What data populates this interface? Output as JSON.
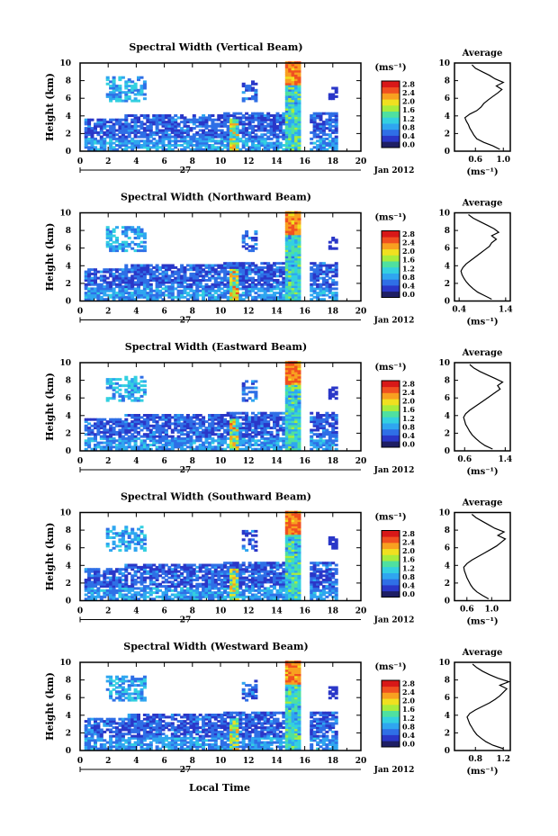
{
  "figure": {
    "xlabel_bottom": "Local Time",
    "date_label": "Jan 2012",
    "day_label": "27"
  },
  "colorbar": {
    "unit_label": "(ms⁻¹)",
    "tick_labels": [
      "0.0",
      "0.4",
      "0.8",
      "1.2",
      "1.6",
      "2.0",
      "2.4",
      "2.8"
    ],
    "colors": [
      "#1e1e64",
      "#2a37c8",
      "#2f6fe6",
      "#2fa6f0",
      "#33d0e0",
      "#4fe0a0",
      "#a8ec3c",
      "#f0e020",
      "#f8a020",
      "#f05020",
      "#d81818"
    ]
  },
  "chart_data": [
    {
      "type": "heatmap",
      "title": "Spectral Width (Vertical Beam)",
      "ylabel": "Height (km)",
      "xlim": [
        0,
        20
      ],
      "ylim": [
        0,
        10
      ],
      "x_ticks": [
        "0",
        "2",
        "4",
        "6",
        "8",
        "10",
        "12",
        "14",
        "16",
        "18",
        "20"
      ],
      "y_ticks": [
        "0",
        "2",
        "4",
        "6",
        "8",
        "10"
      ],
      "average": {
        "title": "Average",
        "xlabel": "(ms⁻¹)",
        "xlim": [
          0.3,
          1.1
        ],
        "x_ticks": [
          "0.6",
          "1.0"
        ],
        "y_ticks": [
          "0",
          "2",
          "4",
          "6",
          "8",
          "10"
        ],
        "height": [
          0.2,
          0.6,
          1.0,
          1.4,
          1.8,
          2.2,
          2.6,
          3.0,
          3.4,
          3.8,
          4.2,
          4.6,
          5.0,
          5.4,
          5.8,
          6.2,
          6.6,
          7.0,
          7.4,
          7.8,
          8.2,
          8.6,
          9.0,
          9.4,
          9.8
        ],
        "value": [
          0.95,
          0.85,
          0.72,
          0.62,
          0.58,
          0.55,
          0.52,
          0.5,
          0.47,
          0.45,
          0.52,
          0.62,
          0.68,
          0.72,
          0.78,
          0.85,
          0.92,
          0.98,
          0.9,
          1.0,
          0.88,
          0.8,
          0.7,
          0.6,
          0.55
        ]
      }
    },
    {
      "type": "heatmap",
      "title": "Spectral Width (Northward Beam)",
      "ylabel": "Height (km)",
      "xlim": [
        0,
        20
      ],
      "ylim": [
        0,
        10
      ],
      "x_ticks": [
        "0",
        "2",
        "4",
        "6",
        "8",
        "10",
        "12",
        "14",
        "16",
        "18",
        "20"
      ],
      "y_ticks": [
        "0",
        "2",
        "4",
        "6",
        "8",
        "10"
      ],
      "average": {
        "title": "Average",
        "xlabel": "(ms⁻¹)",
        "xlim": [
          0.3,
          1.5
        ],
        "x_ticks": [
          "0.4",
          "1.4"
        ],
        "y_ticks": [
          "0",
          "2",
          "4",
          "6",
          "8",
          "10"
        ],
        "height": [
          0.2,
          0.6,
          1.0,
          1.4,
          1.8,
          2.2,
          2.6,
          3.0,
          3.4,
          3.8,
          4.2,
          4.6,
          5.0,
          5.4,
          5.8,
          6.2,
          6.6,
          7.0,
          7.4,
          7.8,
          8.2,
          8.6,
          9.0,
          9.4,
          9.8
        ],
        "value": [
          1.1,
          0.95,
          0.8,
          0.7,
          0.62,
          0.55,
          0.5,
          0.46,
          0.44,
          0.48,
          0.55,
          0.65,
          0.75,
          0.85,
          0.95,
          1.05,
          1.1,
          1.2,
          1.1,
          1.25,
          1.15,
          1.0,
          0.85,
          0.7,
          0.6
        ]
      }
    },
    {
      "type": "heatmap",
      "title": "Spectral Width (Eastward Beam)",
      "ylabel": "Height (km)",
      "xlim": [
        0,
        20
      ],
      "ylim": [
        0,
        10
      ],
      "x_ticks": [
        "0",
        "2",
        "4",
        "6",
        "8",
        "10",
        "12",
        "14",
        "16",
        "18",
        "20"
      ],
      "y_ticks": [
        "0",
        "2",
        "4",
        "6",
        "8",
        "10"
      ],
      "average": {
        "title": "Average",
        "xlabel": "(ms⁻¹)",
        "xlim": [
          0.4,
          1.5
        ],
        "x_ticks": [
          "0.6",
          "1.4"
        ],
        "y_ticks": [
          "0",
          "2",
          "4",
          "6",
          "8",
          "10"
        ],
        "height": [
          0.2,
          0.6,
          1.0,
          1.4,
          1.8,
          2.2,
          2.6,
          3.0,
          3.4,
          3.8,
          4.2,
          4.6,
          5.0,
          5.4,
          5.8,
          6.2,
          6.6,
          7.0,
          7.4,
          7.8,
          8.2,
          8.6,
          9.0,
          9.4,
          9.8
        ],
        "value": [
          1.15,
          1.0,
          0.9,
          0.82,
          0.75,
          0.7,
          0.66,
          0.62,
          0.6,
          0.58,
          0.62,
          0.7,
          0.8,
          0.9,
          1.0,
          1.1,
          1.2,
          1.3,
          1.25,
          1.35,
          1.2,
          1.05,
          0.9,
          0.78,
          0.7
        ]
      }
    },
    {
      "type": "heatmap",
      "title": "Spectral Width (Southward Beam)",
      "ylabel": "Height (km)",
      "xlim": [
        0,
        20
      ],
      "ylim": [
        0,
        10
      ],
      "x_ticks": [
        "0",
        "2",
        "4",
        "6",
        "8",
        "10",
        "12",
        "14",
        "16",
        "18",
        "20"
      ],
      "y_ticks": [
        "0",
        "2",
        "4",
        "6",
        "8",
        "10"
      ],
      "average": {
        "title": "Average",
        "xlabel": "(ms⁻¹)",
        "xlim": [
          0.4,
          1.3
        ],
        "x_ticks": [
          "0.6",
          "1.0"
        ],
        "y_ticks": [
          "0",
          "2",
          "4",
          "6",
          "8",
          "10"
        ],
        "height": [
          0.2,
          0.6,
          1.0,
          1.4,
          1.8,
          2.2,
          2.6,
          3.0,
          3.4,
          3.8,
          4.2,
          4.6,
          5.0,
          5.4,
          5.8,
          6.2,
          6.6,
          7.0,
          7.4,
          7.8,
          8.2,
          8.6,
          9.0,
          9.4,
          9.8
        ],
        "value": [
          0.95,
          0.85,
          0.76,
          0.7,
          0.66,
          0.63,
          0.6,
          0.58,
          0.56,
          0.55,
          0.6,
          0.68,
          0.78,
          0.88,
          0.98,
          1.08,
          1.15,
          1.22,
          1.1,
          1.2,
          1.05,
          0.95,
          0.85,
          0.75,
          0.68
        ]
      }
    },
    {
      "type": "heatmap",
      "title": "Spectral Width (Westward Beam)",
      "ylabel": "Height (km)",
      "xlim": [
        0,
        20
      ],
      "ylim": [
        0,
        10
      ],
      "x_ticks": [
        "0",
        "2",
        "4",
        "6",
        "8",
        "10",
        "12",
        "14",
        "16",
        "18",
        "20"
      ],
      "y_ticks": [
        "0",
        "2",
        "4",
        "6",
        "8",
        "10"
      ],
      "average": {
        "title": "Average",
        "xlabel": "(ms⁻¹)",
        "xlim": [
          0.5,
          1.3
        ],
        "x_ticks": [
          "0.8",
          "1.2"
        ],
        "y_ticks": [
          "0",
          "2",
          "4",
          "6",
          "8",
          "10"
        ],
        "height": [
          0.2,
          0.6,
          1.0,
          1.4,
          1.8,
          2.2,
          2.6,
          3.0,
          3.4,
          3.8,
          4.2,
          4.6,
          5.0,
          5.4,
          5.8,
          6.2,
          6.6,
          7.0,
          7.4,
          7.8,
          8.2,
          8.6,
          9.0,
          9.4,
          9.8
        ],
        "value": [
          1.2,
          1.05,
          0.95,
          0.88,
          0.82,
          0.78,
          0.75,
          0.72,
          0.7,
          0.68,
          0.72,
          0.8,
          0.9,
          1.0,
          1.08,
          1.15,
          1.2,
          1.25,
          1.15,
          1.28,
          1.12,
          1.0,
          0.9,
          0.82,
          0.76
        ]
      }
    }
  ]
}
